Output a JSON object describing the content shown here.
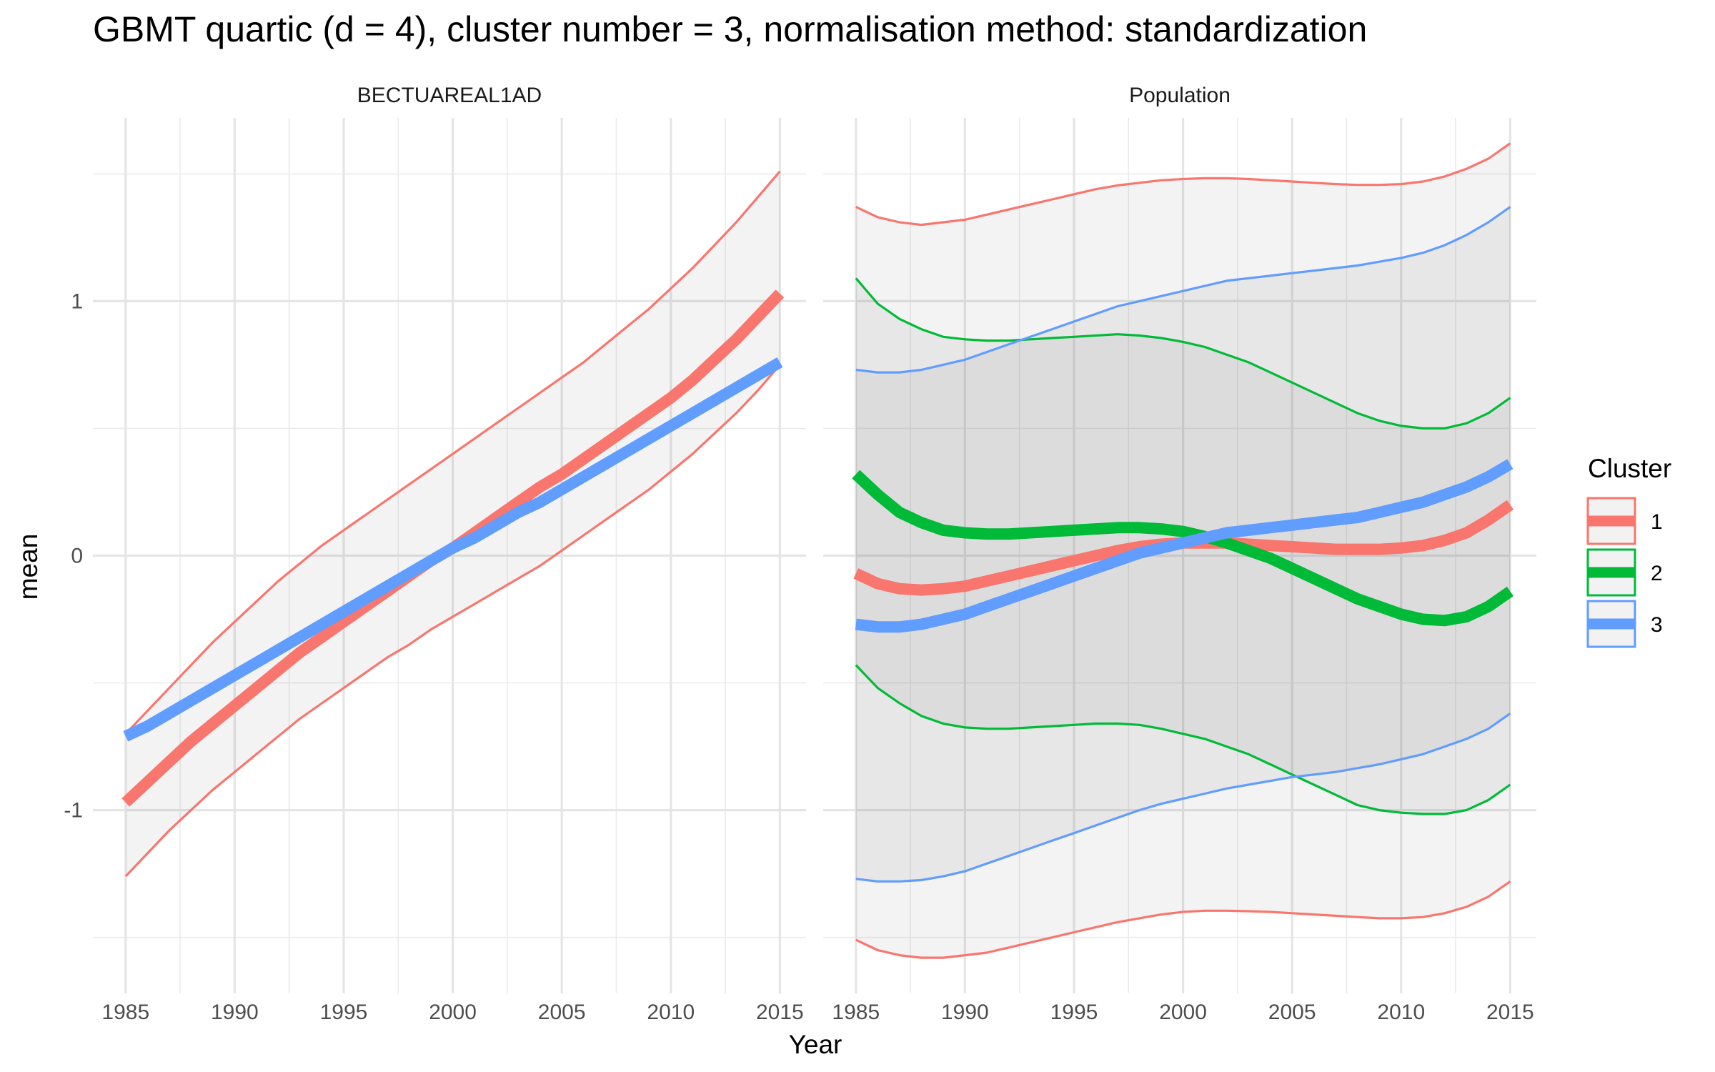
{
  "chart_data": {
    "type": "line",
    "title": "GBMT quartic (d = 4), cluster number = 3, normalisation method: standardization",
    "xlabel": "Year",
    "ylabel": "mean",
    "x": [
      1985,
      1986,
      1987,
      1988,
      1989,
      1990,
      1991,
      1992,
      1993,
      1994,
      1995,
      1996,
      1997,
      1998,
      1999,
      2000,
      2001,
      2002,
      2003,
      2004,
      2005,
      2006,
      2007,
      2008,
      2009,
      2010,
      2011,
      2012,
      2013,
      2014,
      2015
    ],
    "xlim": [
      1983.5,
      2016.2
    ],
    "ylim": [
      -1.72,
      1.72
    ],
    "x_ticks": [
      "1985",
      "1990",
      "1995",
      "2000",
      "2005",
      "2010",
      "2015"
    ],
    "x_tick_values": [
      1985,
      1990,
      1995,
      2000,
      2005,
      2010,
      2015
    ],
    "y_ticks": [
      "-1",
      "0",
      "1"
    ],
    "y_tick_values": [
      -1,
      0,
      1
    ],
    "legend": {
      "title": "Cluster",
      "position": "right"
    },
    "grid": true,
    "series_style": {
      "mean_width": 16,
      "band_width": 3.2
    },
    "clusters": [
      {
        "name": "1",
        "color": "#F8766D"
      },
      {
        "name": "2",
        "color": "#00BA38"
      },
      {
        "name": "3",
        "color": "#619CFF"
      }
    ],
    "panels": [
      {
        "label": "BECTUAREAL1AD",
        "series": [
          {
            "cluster": "1",
            "mean": [
              -0.97,
              -0.89,
              -0.81,
              -0.73,
              -0.66,
              -0.59,
              -0.52,
              -0.45,
              -0.38,
              -0.32,
              -0.26,
              -0.2,
              -0.14,
              -0.08,
              -0.02,
              0.03,
              0.09,
              0.15,
              0.21,
              0.27,
              0.32,
              0.38,
              0.44,
              0.5,
              0.56,
              0.62,
              0.69,
              0.77,
              0.85,
              0.94,
              1.03
            ],
            "upper": [
              -0.7,
              -0.61,
              -0.52,
              -0.43,
              -0.34,
              -0.26,
              -0.18,
              -0.1,
              -0.03,
              0.04,
              0.1,
              0.16,
              0.22,
              0.28,
              0.34,
              0.4,
              0.46,
              0.52,
              0.58,
              0.64,
              0.7,
              0.76,
              0.83,
              0.9,
              0.97,
              1.05,
              1.13,
              1.22,
              1.31,
              1.41,
              1.51
            ],
            "lower": [
              -1.26,
              -1.17,
              -1.08,
              -1.0,
              -0.92,
              -0.85,
              -0.78,
              -0.71,
              -0.64,
              -0.58,
              -0.52,
              -0.46,
              -0.4,
              -0.35,
              -0.29,
              -0.24,
              -0.19,
              -0.14,
              -0.09,
              -0.04,
              0.02,
              0.08,
              0.14,
              0.2,
              0.26,
              0.33,
              0.4,
              0.48,
              0.56,
              0.65,
              0.75
            ]
          },
          {
            "cluster": "3",
            "mean": [
              -0.71,
              -0.67,
              -0.62,
              -0.57,
              -0.52,
              -0.47,
              -0.42,
              -0.37,
              -0.32,
              -0.27,
              -0.22,
              -0.17,
              -0.12,
              -0.07,
              -0.02,
              0.03,
              0.07,
              0.12,
              0.17,
              0.21,
              0.26,
              0.31,
              0.36,
              0.41,
              0.46,
              0.51,
              0.56,
              0.61,
              0.66,
              0.71,
              0.76
            ]
          }
        ]
      },
      {
        "label": "Population",
        "series": [
          {
            "cluster": "1",
            "mean": [
              -0.07,
              -0.11,
              -0.13,
              -0.135,
              -0.13,
              -0.12,
              -0.1,
              -0.08,
              -0.06,
              -0.04,
              -0.02,
              0.0,
              0.02,
              0.035,
              0.045,
              0.05,
              0.05,
              0.05,
              0.045,
              0.04,
              0.035,
              0.03,
              0.025,
              0.025,
              0.025,
              0.03,
              0.04,
              0.06,
              0.09,
              0.14,
              0.2
            ],
            "upper": [
              1.37,
              1.33,
              1.31,
              1.3,
              1.31,
              1.32,
              1.34,
              1.36,
              1.38,
              1.4,
              1.42,
              1.44,
              1.455,
              1.465,
              1.475,
              1.48,
              1.483,
              1.483,
              1.48,
              1.475,
              1.47,
              1.465,
              1.46,
              1.457,
              1.457,
              1.46,
              1.47,
              1.49,
              1.52,
              1.56,
              1.62
            ]
          },
          {
            "cluster": "2",
            "mean": [
              0.32,
              0.24,
              0.17,
              0.13,
              0.1,
              0.09,
              0.085,
              0.085,
              0.09,
              0.095,
              0.1,
              0.105,
              0.11,
              0.11,
              0.105,
              0.095,
              0.075,
              0.05,
              0.02,
              -0.01,
              -0.05,
              -0.09,
              -0.13,
              -0.17,
              -0.2,
              -0.23,
              -0.25,
              -0.255,
              -0.24,
              -0.2,
              -0.14
            ],
            "upper": [
              1.09,
              0.99,
              0.93,
              0.89,
              0.86,
              0.85,
              0.845,
              0.845,
              0.85,
              0.855,
              0.86,
              0.865,
              0.87,
              0.865,
              0.855,
              0.84,
              0.82,
              0.79,
              0.76,
              0.72,
              0.68,
              0.64,
              0.6,
              0.56,
              0.53,
              0.51,
              0.5,
              0.5,
              0.52,
              0.56,
              0.62
            ],
            "lower": [
              -0.43,
              -0.52,
              -0.58,
              -0.63,
              -0.66,
              -0.675,
              -0.68,
              -0.68,
              -0.675,
              -0.67,
              -0.665,
              -0.66,
              -0.66,
              -0.665,
              -0.68,
              -0.7,
              -0.72,
              -0.75,
              -0.78,
              -0.82,
              -0.86,
              -0.9,
              -0.94,
              -0.98,
              -1.0,
              -1.01,
              -1.015,
              -1.015,
              -1.0,
              -0.96,
              -0.9
            ]
          },
          {
            "cluster": "3",
            "mean": [
              -0.27,
              -0.28,
              -0.28,
              -0.27,
              -0.25,
              -0.23,
              -0.2,
              -0.17,
              -0.14,
              -0.11,
              -0.08,
              -0.05,
              -0.02,
              0.01,
              0.03,
              0.05,
              0.07,
              0.09,
              0.1,
              0.11,
              0.12,
              0.13,
              0.14,
              0.15,
              0.17,
              0.19,
              0.21,
              0.24,
              0.27,
              0.31,
              0.36
            ],
            "upper": [
              0.73,
              0.72,
              0.72,
              0.73,
              0.75,
              0.77,
              0.8,
              0.83,
              0.86,
              0.89,
              0.92,
              0.95,
              0.98,
              1.0,
              1.02,
              1.04,
              1.06,
              1.08,
              1.09,
              1.1,
              1.11,
              1.12,
              1.13,
              1.14,
              1.155,
              1.17,
              1.19,
              1.22,
              1.26,
              1.31,
              1.37
            ],
            "lower": [
              -1.27,
              -1.28,
              -1.28,
              -1.275,
              -1.26,
              -1.24,
              -1.21,
              -1.18,
              -1.15,
              -1.12,
              -1.09,
              -1.06,
              -1.03,
              -1.0,
              -0.975,
              -0.955,
              -0.935,
              -0.915,
              -0.9,
              -0.885,
              -0.87,
              -0.86,
              -0.85,
              -0.835,
              -0.82,
              -0.8,
              -0.78,
              -0.75,
              -0.72,
              -0.68,
              -0.62
            ]
          },
          {
            "cluster": "1",
            "lower": [
              -1.51,
              -1.55,
              -1.57,
              -1.58,
              -1.58,
              -1.57,
              -1.56,
              -1.54,
              -1.52,
              -1.5,
              -1.48,
              -1.46,
              -1.44,
              -1.425,
              -1.41,
              -1.4,
              -1.395,
              -1.395,
              -1.397,
              -1.4,
              -1.405,
              -1.41,
              -1.415,
              -1.42,
              -1.425,
              -1.425,
              -1.42,
              -1.405,
              -1.38,
              -1.34,
              -1.28
            ]
          }
        ]
      }
    ]
  }
}
